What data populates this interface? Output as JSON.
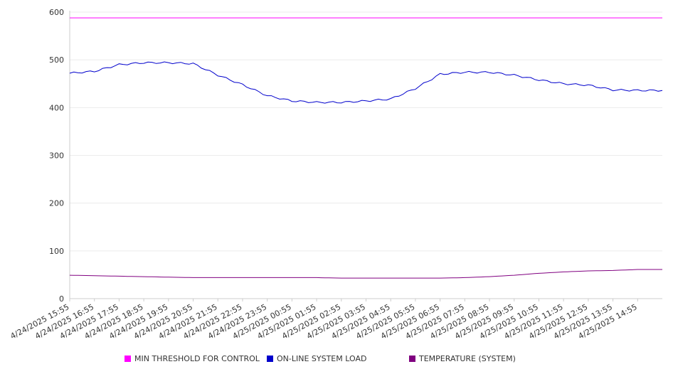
{
  "chart_data": {
    "type": "line",
    "title": "",
    "xlabel": "",
    "ylabel": "",
    "ylim": [
      0,
      600
    ],
    "yticks": [
      0,
      100,
      200,
      300,
      400,
      500,
      600
    ],
    "grid": "horizontal",
    "legend_position": "bottom",
    "x": [
      "4/24/2025 15:55",
      "4/24/2025 16:55",
      "4/24/2025 17:55",
      "4/24/2025 18:55",
      "4/24/2025 19:55",
      "4/24/2025 20:55",
      "4/24/2025 21:55",
      "4/24/2025 22:55",
      "4/24/2025 23:55",
      "4/25/2025 00:55",
      "4/25/2025 01:55",
      "4/25/2025 02:55",
      "4/25/2025 03:55",
      "4/25/2025 04:55",
      "4/25/2025 05:55",
      "4/25/2025 06:55",
      "4/25/2025 07:55",
      "4/25/2025 08:55",
      "4/25/2025 09:55",
      "4/25/2025 10:55",
      "4/25/2025 11:55",
      "4/25/2025 12:55",
      "4/25/2025 13:55",
      "4/25/2025 14:55"
    ],
    "series": [
      {
        "name": "MIN THRESHOLD FOR CONTROL",
        "color": "#ff00ff",
        "values": [
          588,
          588,
          588,
          588,
          588,
          588,
          588,
          588,
          588,
          588,
          588,
          588,
          588,
          588,
          588,
          588,
          588,
          588,
          588,
          588,
          588,
          588,
          588,
          588
        ]
      },
      {
        "name": "ON-LINE SYSTEM LOAD",
        "color": "#0000cc",
        "values": [
          472,
          476,
          490,
          494,
          494,
          492,
          468,
          448,
          425,
          414,
          411,
          411,
          414,
          418,
          440,
          470,
          474,
          474,
          468,
          458,
          450,
          447,
          437,
          436
        ]
      },
      {
        "name": "TEMPERATURE (SYSTEM)",
        "color": "#800080",
        "values": [
          49,
          48,
          47,
          46,
          45,
          44,
          44,
          44,
          44,
          44,
          44,
          43,
          43,
          43,
          43,
          43,
          44,
          46,
          49,
          53,
          56,
          58,
          59,
          61
        ]
      }
    ]
  }
}
